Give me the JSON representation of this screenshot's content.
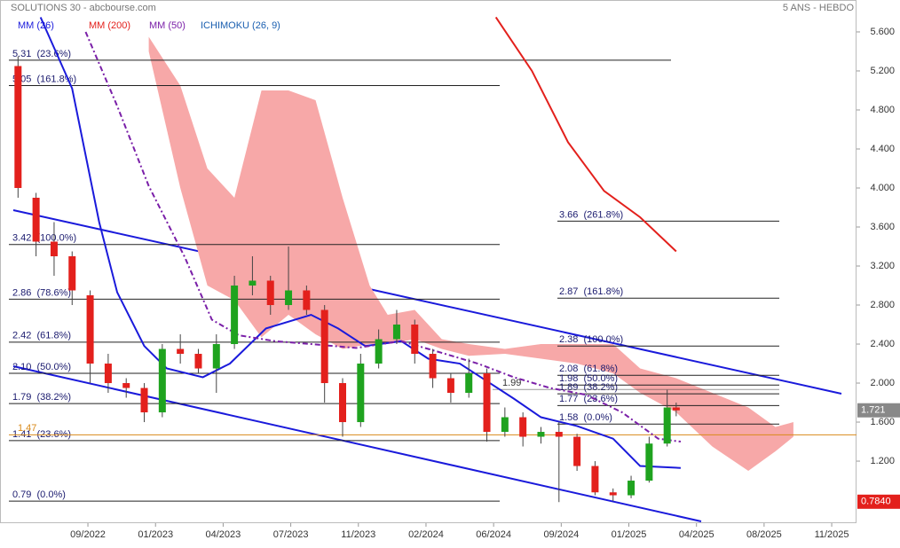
{
  "chart_data": {
    "type": "candlestick",
    "title": "SOLUTIONS 30 - abcbourse.com",
    "subtitle": "5 ANS - HEBDO",
    "xlim": [
      0,
      190
    ],
    "ylim": [
      0.564,
      5.927
    ],
    "xticks": [
      {
        "value": 19.5,
        "label": "09/2022"
      },
      {
        "value": 34.5,
        "label": "01/2023"
      },
      {
        "value": 49.5,
        "label": "04/2023"
      },
      {
        "value": 64.5,
        "label": "07/2023"
      },
      {
        "value": 79.5,
        "label": "11/2023"
      },
      {
        "value": 94.5,
        "label": "02/2024"
      },
      {
        "value": 109.5,
        "label": "06/2024"
      },
      {
        "value": 124.5,
        "label": "09/2024"
      },
      {
        "value": 139.5,
        "label": "01/2025"
      },
      {
        "value": 154.5,
        "label": "04/2025"
      },
      {
        "value": 169.5,
        "label": "08/2025"
      },
      {
        "value": 184.5,
        "label": "11/2025"
      }
    ],
    "yticks": [
      {
        "value": 1.2,
        "label": "1.200"
      },
      {
        "value": 1.6,
        "label": "1.600"
      },
      {
        "value": 2.0,
        "label": "2.000"
      },
      {
        "value": 2.4,
        "label": "2.400"
      },
      {
        "value": 2.8,
        "label": "2.800"
      },
      {
        "value": 3.2,
        "label": "3.200"
      },
      {
        "value": 3.6,
        "label": "3.600"
      },
      {
        "value": 4.0,
        "label": "4.000"
      },
      {
        "value": 4.4,
        "label": "4.400"
      },
      {
        "value": 4.8,
        "label": "4.800"
      },
      {
        "value": 5.2,
        "label": "5.200"
      },
      {
        "value": 5.6,
        "label": "5.600"
      }
    ],
    "up_color": "#1fa31f",
    "down_color": "#e3201c",
    "x": [
      4,
      8,
      12,
      16,
      20,
      24,
      28,
      32,
      36,
      40,
      44,
      48,
      52,
      56,
      60,
      64,
      68,
      72,
      76,
      80,
      84,
      88,
      92,
      96,
      100,
      104,
      108,
      112,
      116,
      120,
      124,
      128,
      132,
      136,
      140,
      144,
      148,
      150
    ],
    "open": [
      5.25,
      3.9,
      3.45,
      3.3,
      2.9,
      2.2,
      2.0,
      1.95,
      1.7,
      2.35,
      2.3,
      2.15,
      2.4,
      3.0,
      3.05,
      2.8,
      2.95,
      2.75,
      2.0,
      1.6,
      2.2,
      2.45,
      2.6,
      2.3,
      2.05,
      1.9,
      2.1,
      1.5,
      1.65,
      1.45,
      1.5,
      1.45,
      1.15,
      0.88,
      0.85,
      1.0,
      1.38,
      1.75
    ],
    "high": [
      5.35,
      3.95,
      3.65,
      3.35,
      2.95,
      2.3,
      2.05,
      2.0,
      2.4,
      2.5,
      2.35,
      2.5,
      3.1,
      3.3,
      3.1,
      3.4,
      3.0,
      2.8,
      2.05,
      2.3,
      2.55,
      2.75,
      2.65,
      2.35,
      2.1,
      2.25,
      2.15,
      1.75,
      1.7,
      1.55,
      1.6,
      1.48,
      1.2,
      0.92,
      1.05,
      1.45,
      1.93,
      1.8
    ],
    "low": [
      3.9,
      3.3,
      3.1,
      2.8,
      2.0,
      1.9,
      1.85,
      1.6,
      1.65,
      2.2,
      2.1,
      1.9,
      2.35,
      2.9,
      2.7,
      2.75,
      2.7,
      1.8,
      1.45,
      1.55,
      2.15,
      2.4,
      2.2,
      1.95,
      1.8,
      1.85,
      1.4,
      1.45,
      1.35,
      1.38,
      0.78,
      1.1,
      0.85,
      0.79,
      0.82,
      0.98,
      1.35,
      1.66
    ],
    "close": [
      4.0,
      3.45,
      3.3,
      2.95,
      2.2,
      2.0,
      1.95,
      1.7,
      2.35,
      2.3,
      2.15,
      2.4,
      3.0,
      3.05,
      2.8,
      2.95,
      2.75,
      2.0,
      1.6,
      2.2,
      2.45,
      2.6,
      2.3,
      2.05,
      1.9,
      2.1,
      1.5,
      1.65,
      1.45,
      1.5,
      1.45,
      1.15,
      0.88,
      0.85,
      1.0,
      1.38,
      1.75,
      1.721
    ],
    "series": [
      {
        "name": "MM (26)",
        "color": "#1a1adb",
        "dash": false,
        "x": [
          9,
          16,
          22,
          26,
          32,
          37,
          45,
          51,
          59,
          69,
          75,
          81,
          89,
          95,
          102,
          108,
          114,
          120,
          128,
          136,
          142,
          151
        ],
        "values": [
          5.75,
          5.02,
          3.65,
          2.93,
          2.38,
          2.15,
          2.06,
          2.2,
          2.56,
          2.7,
          2.56,
          2.38,
          2.43,
          2.25,
          2.2,
          2.02,
          1.84,
          1.65,
          1.56,
          1.43,
          1.15,
          1.13
        ]
      },
      {
        "name": "MM (200)",
        "color": "#e3201c",
        "dash": false,
        "x": [
          110,
          118,
          126,
          134,
          142,
          150
        ],
        "values": [
          5.75,
          5.2,
          4.47,
          3.97,
          3.7,
          3.35
        ]
      },
      {
        "name": "MM (50)",
        "color": "#7a1fa8",
        "dash": true,
        "x": [
          19,
          26,
          33,
          41,
          47,
          53,
          61,
          69,
          79,
          89,
          98,
          106,
          114,
          122,
          130,
          138,
          146,
          151
        ],
        "values": [
          5.6,
          4.84,
          4.02,
          3.29,
          2.65,
          2.49,
          2.43,
          2.4,
          2.36,
          2.43,
          2.31,
          2.2,
          2.06,
          1.95,
          1.88,
          1.7,
          1.43,
          1.4
        ]
      }
    ],
    "ichimoku": {
      "name": "ICHIMOKU (26, 9)",
      "color": "#f7a8a8",
      "legend_color": "#1a5fb0",
      "x": [
        33,
        40,
        46,
        52,
        58,
        64,
        70,
        76,
        82,
        86,
        92,
        98,
        104,
        112,
        120,
        128,
        136,
        142,
        150,
        158,
        166,
        172,
        176
      ],
      "upper": [
        5.55,
        5.05,
        4.2,
        3.9,
        5.0,
        5.0,
        4.9,
        3.9,
        3.0,
        2.7,
        2.75,
        2.45,
        2.4,
        2.35,
        2.4,
        2.4,
        2.4,
        2.15,
        2.05,
        1.9,
        1.75,
        1.55,
        1.6
      ],
      "lower": [
        5.4,
        4.0,
        3.0,
        2.85,
        2.47,
        2.7,
        2.5,
        2.35,
        2.4,
        2.4,
        2.45,
        2.35,
        2.28,
        2.3,
        2.25,
        2.2,
        2.1,
        1.9,
        1.7,
        1.35,
        1.1,
        1.3,
        1.45
      ]
    },
    "fibonacci": [
      {
        "levels": [
          {
            "value": 5.31,
            "label": "5.31  (23.6%)"
          },
          {
            "value": 5.05,
            "label": "5.05  (161.8%)"
          },
          {
            "value": 3.42,
            "label": "3.42  (100.0%)"
          },
          {
            "value": 2.86,
            "label": "2.86  (78.6%)"
          },
          {
            "value": 2.42,
            "label": "2.42  (61.8%)"
          },
          {
            "value": 2.1,
            "label": "2.10  (50.0%)"
          },
          {
            "value": 1.79,
            "label": "1.79  (38.2%)"
          },
          {
            "value": 1.41,
            "label": "1.41  (23.6%)"
          },
          {
            "value": 0.79,
            "label": "0.79  (0.0%)"
          }
        ]
      },
      {
        "levels": [
          {
            "value": 3.66,
            "label": "3.66  (261.8%)"
          },
          {
            "value": 2.87,
            "label": "2.87  (161.8%)"
          },
          {
            "value": 2.38,
            "label": "2.38  (100.0%)"
          },
          {
            "value": 2.08,
            "label": "2.08  (61.8%)"
          },
          {
            "value": 1.98,
            "label": "1.98  (50.0%)"
          },
          {
            "value": 1.89,
            "label": "1.89  (38.2%)"
          },
          {
            "value": 1.77,
            "label": "1.77  (23.6%)"
          },
          {
            "value": 1.58,
            "label": "1.58  (0.0%)"
          }
        ]
      }
    ],
    "annotations": [
      {
        "value": 1.47,
        "color": "#d98a1a"
      },
      {
        "value": 1.99,
        "color": "#333333"
      }
    ],
    "last_price": 1.721,
    "low_price": {
      "value": 0.784,
      "label": "0.7840"
    }
  }
}
